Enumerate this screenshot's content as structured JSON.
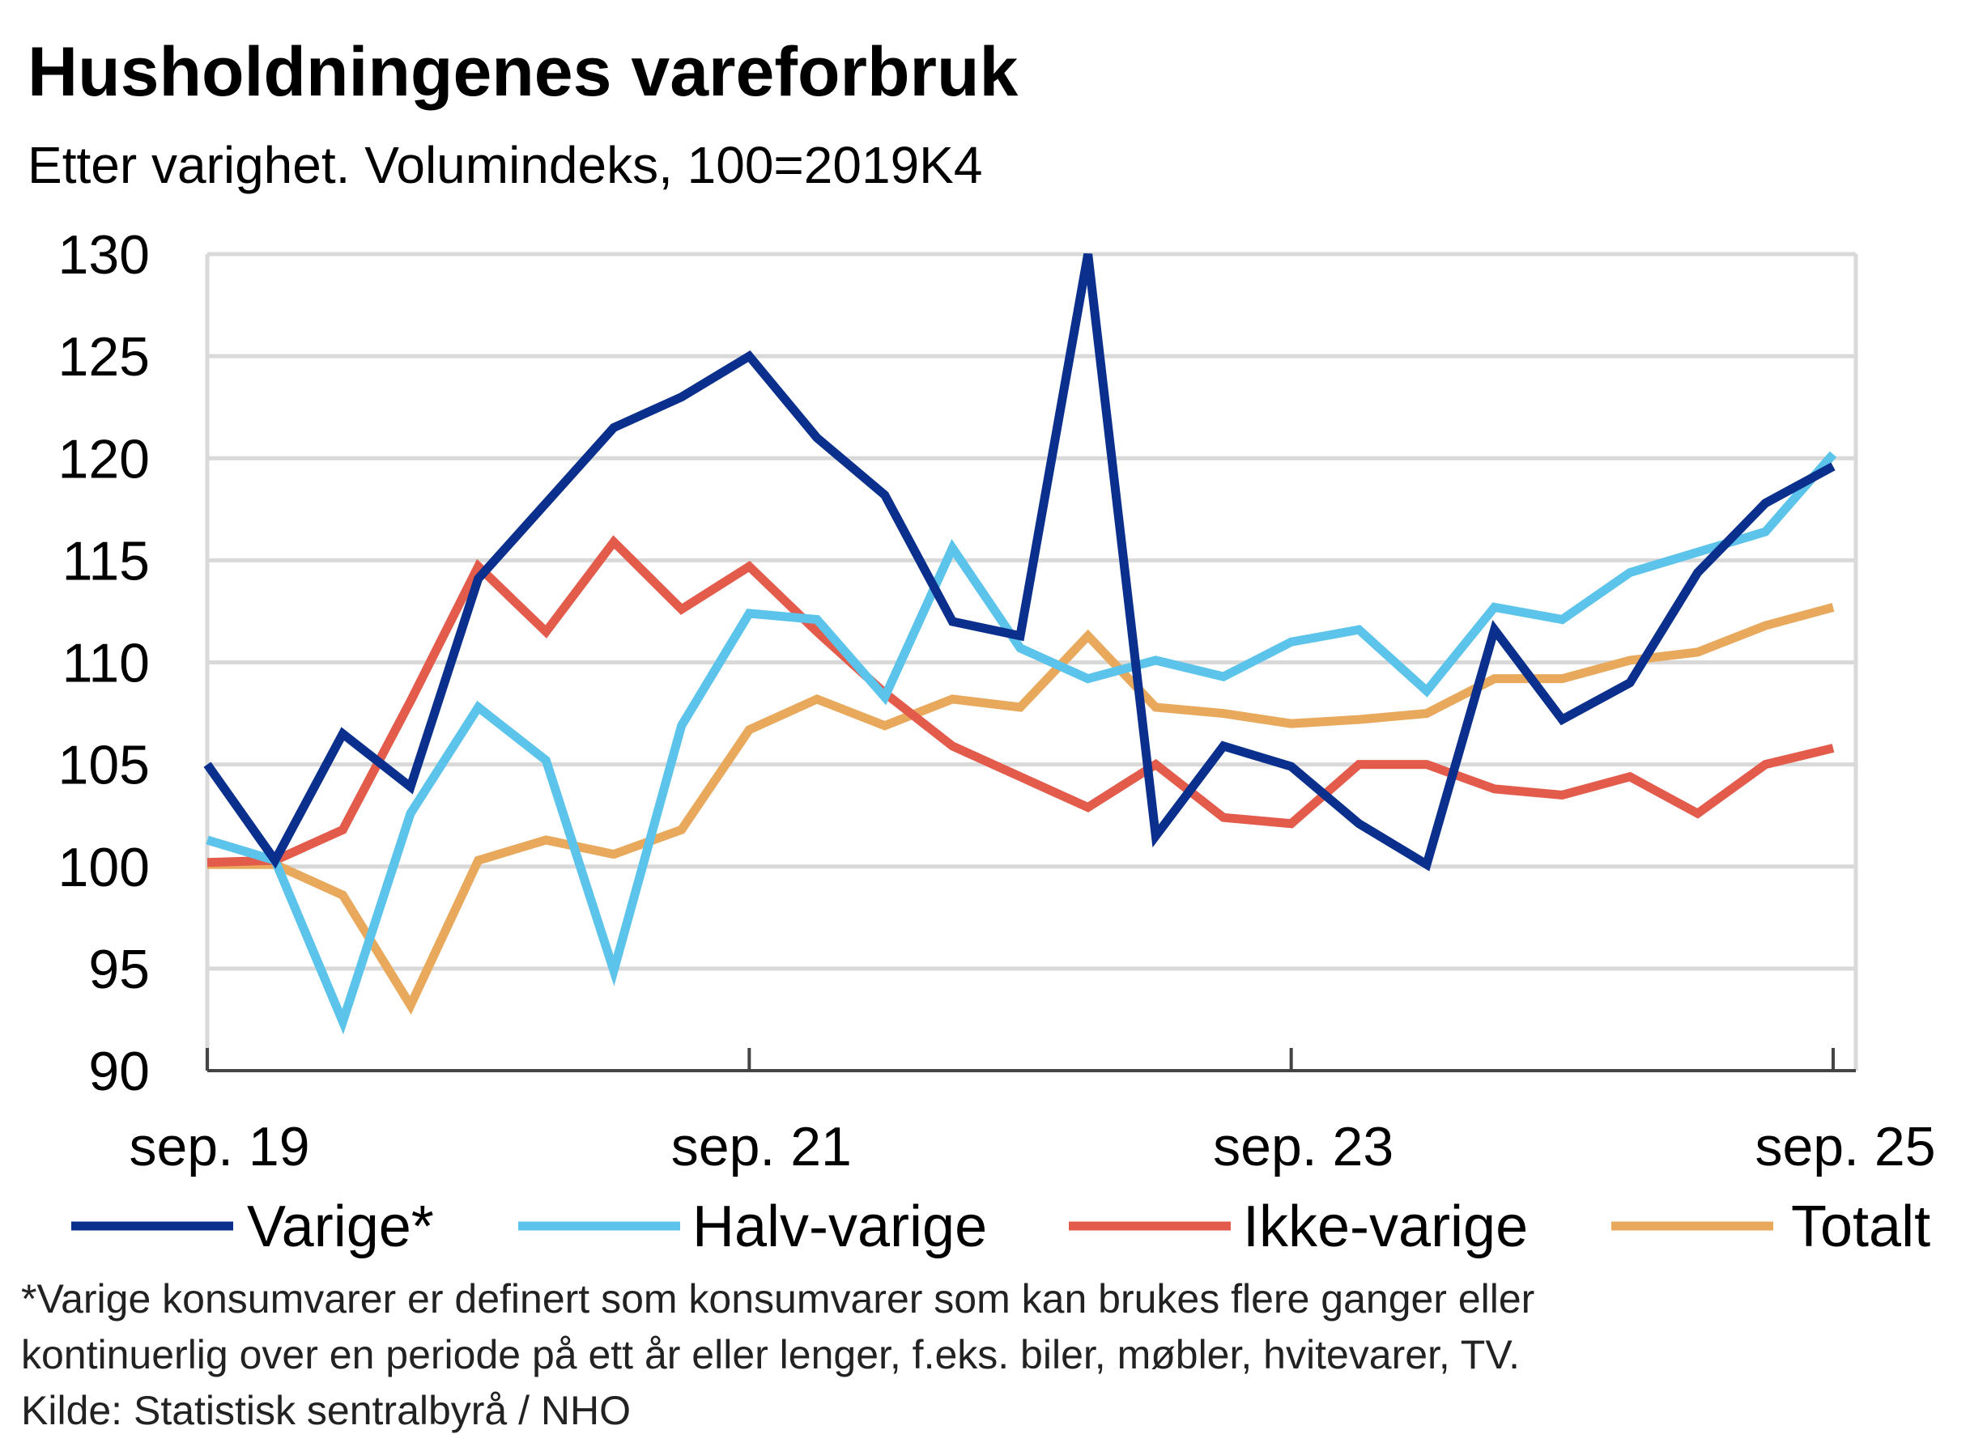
{
  "chart_data": {
    "type": "line",
    "title": "Husholdningenes vareforbruk",
    "subtitle": "Etter varighet. Volumindeks, 100=2019K4",
    "xlabel": "",
    "ylabel": "",
    "ylim": [
      90,
      130
    ],
    "yticks": [
      "90",
      "95",
      "100",
      "105",
      "110",
      "115",
      "120",
      "125",
      "130"
    ],
    "x_tick_labels": [
      {
        "label": "sep. 19",
        "index": 0
      },
      {
        "label": "sep. 21",
        "index": 8
      },
      {
        "label": "sep. 23",
        "index": 16
      },
      {
        "label": "sep. 25",
        "index": 24
      }
    ],
    "x_count": 25,
    "grid": true,
    "legend_position": "bottom",
    "series": [
      {
        "name": "Varige*",
        "color": "#0b2f8c",
        "values": [
          105.0,
          100.3,
          106.5,
          103.9,
          114.1,
          117.8,
          121.5,
          123.0,
          125.0,
          121.0,
          118.2,
          112.0,
          111.3,
          130.0,
          101.5,
          105.9,
          104.9,
          102.1,
          100.1,
          111.6,
          107.2,
          109.0,
          114.4,
          117.8,
          119.6
        ]
      },
      {
        "name": "Halv-varige",
        "color": "#5cc3ea",
        "values": [
          101.3,
          100.3,
          92.4,
          102.6,
          107.8,
          105.2,
          94.9,
          106.9,
          112.4,
          112.1,
          108.3,
          115.6,
          110.7,
          109.2,
          110.1,
          109.3,
          111.0,
          111.6,
          108.6,
          112.7,
          112.1,
          114.4,
          115.4,
          116.4,
          120.2
        ]
      },
      {
        "name": "Ikke-varige",
        "color": "#e35b4b",
        "values": [
          100.2,
          100.3,
          101.8,
          108.1,
          114.7,
          111.5,
          115.9,
          112.6,
          114.7,
          111.5,
          108.5,
          105.9,
          104.4,
          102.9,
          105.0,
          102.4,
          102.1,
          105.0,
          105.0,
          103.8,
          103.5,
          104.4,
          102.6,
          105.0,
          105.8
        ]
      },
      {
        "name": "Totalt",
        "color": "#e8a95c",
        "values": [
          100.1,
          100.1,
          98.6,
          93.2,
          100.3,
          101.3,
          100.6,
          101.8,
          106.7,
          108.2,
          106.9,
          108.2,
          107.8,
          111.3,
          107.8,
          107.5,
          107.0,
          107.2,
          107.5,
          109.2,
          109.2,
          110.1,
          110.5,
          111.8,
          112.7
        ]
      }
    ],
    "footnotes": [
      "*Varige konsumvarer er definert som konsumvarer som kan brukes flere ganger eller",
      "kontinuerlig over en periode på ett år eller lenger, f.eks. biler, møbler, hvitevarer, TV.",
      "Kilde: Statistisk sentralbyrå / NHO"
    ]
  }
}
